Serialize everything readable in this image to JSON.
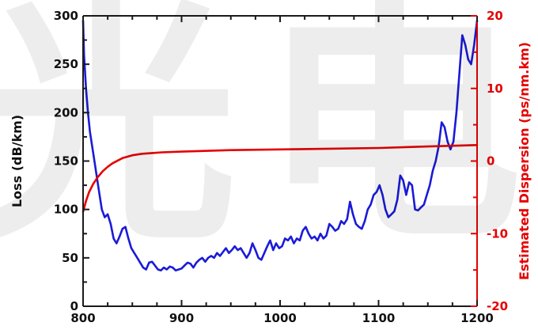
{
  "watermark": {
    "text_left": "光",
    "text_right": "电"
  },
  "chart_data": {
    "type": "line",
    "title": "",
    "xlabel": "",
    "ylabel_left": "Loss (dB/km)",
    "ylabel_right": "Estimated Dispersion (ps/nm.km)",
    "xlim": [
      800,
      1200
    ],
    "ylim_left": [
      0,
      300
    ],
    "ylim_right": [
      -20,
      20
    ],
    "xticks": [
      800,
      900,
      1000,
      1100,
      1200
    ],
    "yticks_left": [
      0,
      50,
      100,
      150,
      200,
      250,
      300
    ],
    "yticks_right": [
      -20,
      -10,
      0,
      10,
      20
    ],
    "grid": false,
    "legend": "none",
    "colors": {
      "loss": "#1a1ad9",
      "dispersion": "#e60000",
      "axis_left": "#1a1a1a",
      "axis_right": "#e60000"
    },
    "series": [
      {
        "axis": "left",
        "x": [
          800,
          801,
          803,
          805,
          807,
          810,
          813,
          816,
          819,
          822,
          825,
          828,
          831,
          834,
          837,
          840,
          843,
          846,
          849,
          852,
          855,
          858,
          861,
          864,
          867,
          870,
          873,
          876,
          879,
          882,
          885,
          888,
          891,
          894,
          897,
          900,
          903,
          906,
          909,
          912,
          915,
          918,
          921,
          924,
          927,
          930,
          933,
          936,
          939,
          942,
          945,
          948,
          951,
          954,
          957,
          960,
          963,
          966,
          969,
          972,
          975,
          978,
          981,
          984,
          987,
          990,
          993,
          996,
          999,
          1002,
          1005,
          1008,
          1011,
          1014,
          1017,
          1020,
          1023,
          1026,
          1029,
          1032,
          1035,
          1038,
          1041,
          1044,
          1047,
          1050,
          1053,
          1056,
          1059,
          1062,
          1065,
          1068,
          1071,
          1074,
          1077,
          1080,
          1083,
          1086,
          1089,
          1092,
          1095,
          1098,
          1101,
          1104,
          1107,
          1110,
          1113,
          1116,
          1119,
          1122,
          1125,
          1128,
          1131,
          1134,
          1137,
          1140,
          1143,
          1146,
          1149,
          1152,
          1155,
          1158,
          1161,
          1164,
          1167,
          1170,
          1173,
          1176,
          1179,
          1182,
          1185,
          1188,
          1191,
          1194,
          1197,
          1200
        ],
        "values": [
          295,
          260,
          225,
          200,
          180,
          160,
          140,
          120,
          100,
          92,
          95,
          85,
          70,
          65,
          72,
          80,
          82,
          70,
          60,
          55,
          50,
          45,
          40,
          38,
          45,
          46,
          42,
          38,
          37,
          40,
          38,
          41,
          40,
          37,
          38,
          39,
          42,
          45,
          44,
          40,
          45,
          48,
          50,
          46,
          50,
          52,
          50,
          55,
          52,
          56,
          60,
          55,
          58,
          62,
          58,
          60,
          55,
          50,
          55,
          65,
          58,
          50,
          48,
          55,
          62,
          68,
          58,
          65,
          60,
          62,
          70,
          68,
          72,
          65,
          70,
          68,
          78,
          82,
          75,
          70,
          72,
          68,
          75,
          70,
          73,
          85,
          82,
          78,
          80,
          88,
          85,
          90,
          108,
          95,
          85,
          82,
          80,
          88,
          100,
          105,
          115,
          118,
          125,
          115,
          100,
          92,
          95,
          98,
          110,
          135,
          130,
          115,
          128,
          125,
          100,
          99,
          102,
          105,
          115,
          125,
          140,
          150,
          165,
          190,
          185,
          170,
          162,
          170,
          200,
          240,
          280,
          270,
          255,
          250,
          270,
          295
        ]
      },
      {
        "axis": "right",
        "x": [
          800,
          803,
          806,
          810,
          815,
          820,
          825,
          830,
          840,
          850,
          860,
          870,
          880,
          900,
          950,
          1000,
          1050,
          1100,
          1150,
          1200
        ],
        "values": [
          -7,
          -5.5,
          -4.3,
          -3.2,
          -2.2,
          -1.4,
          -0.8,
          -0.3,
          0.4,
          0.8,
          1.0,
          1.1,
          1.2,
          1.3,
          1.5,
          1.6,
          1.7,
          1.8,
          2.0,
          2.2
        ]
      }
    ]
  }
}
